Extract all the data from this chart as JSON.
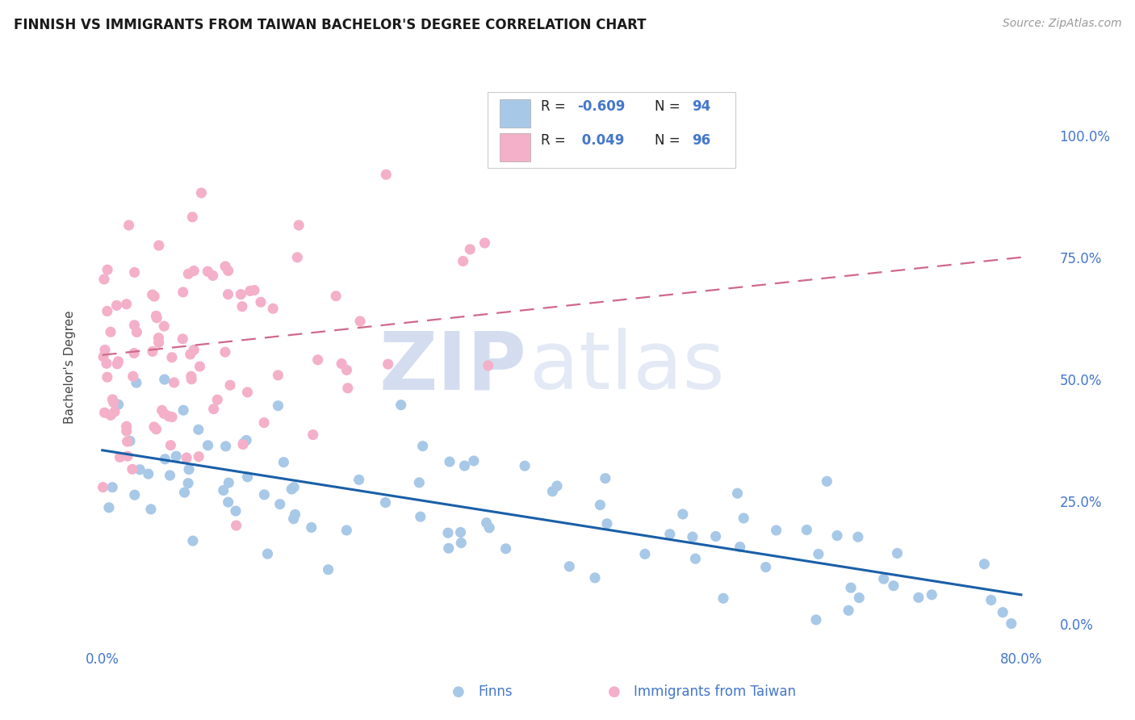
{
  "title": "FINNISH VS IMMIGRANTS FROM TAIWAN BACHELOR'S DEGREE CORRELATION CHART",
  "source": "Source: ZipAtlas.com",
  "ylabel": "Bachelor's Degree",
  "right_ytick_labels": [
    "0.0%",
    "25.0%",
    "50.0%",
    "75.0%",
    "100.0%"
  ],
  "right_ytick_vals": [
    0,
    25,
    50,
    75,
    100
  ],
  "xtick_labels": [
    "0.0%",
    "80.0%"
  ],
  "xtick_vals": [
    0,
    80
  ],
  "series1_label": "Finns",
  "series2_label": "Immigrants from Taiwan",
  "series1_scatter_color": "#a8c8e8",
  "series2_scatter_color": "#f4b0c8",
  "series1_line_color": "#1a5fa8",
  "series2_line_color": "#d06888",
  "background_color": "#ffffff",
  "grid_color": "#d8dfe8",
  "title_fontsize": 12,
  "source_fontsize": 10,
  "axis_color": "#4477cc",
  "legend_text_color": "#4477cc",
  "legend_label_color": "#222222",
  "finns_intercept": 35.5,
  "finns_slope": -0.37,
  "taiwan_intercept": 55.0,
  "taiwan_slope": 0.25,
  "xlim_min": -1.5,
  "xlim_max": 83,
  "ylim_min": -5,
  "ylim_max": 110
}
